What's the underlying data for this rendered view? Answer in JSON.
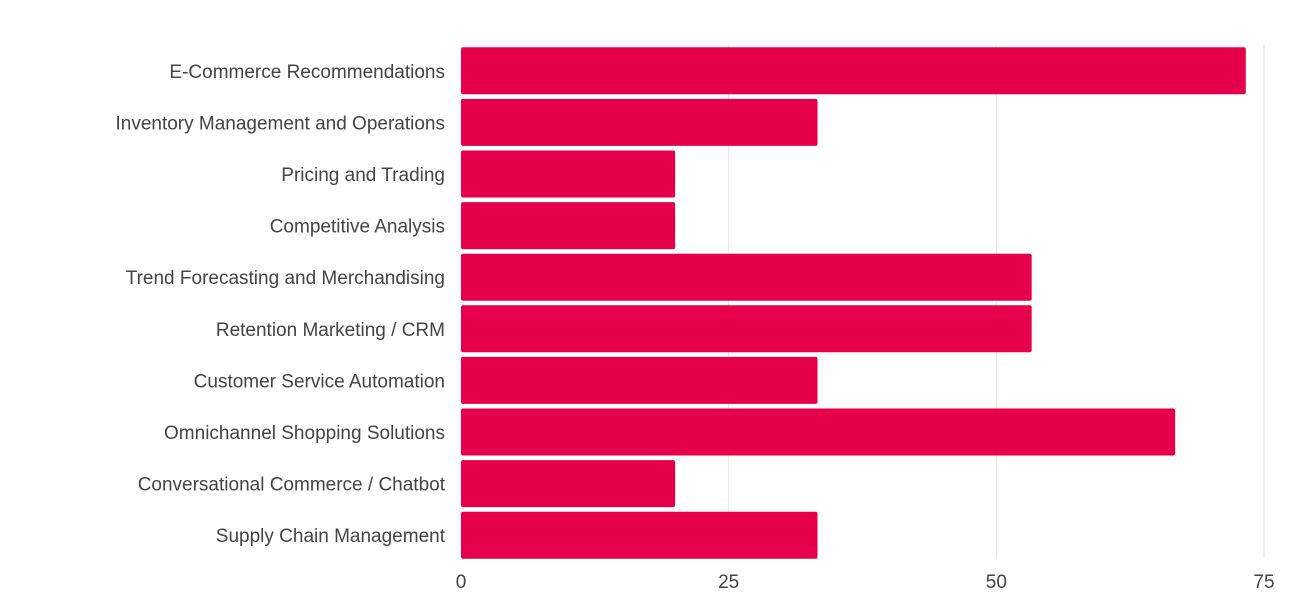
{
  "chart_data": {
    "type": "bar",
    "orientation": "horizontal",
    "categories": [
      "E-Commerce Recommendations",
      "Inventory Management and Operations",
      "Pricing and Trading",
      "Competitive Analysis",
      "Trend Forecasting and Merchandising",
      "Retention Marketing / CRM",
      "Customer Service Automation",
      "Omnichannel Shopping Solutions",
      "Conversational Commerce / Chatbot",
      "Supply Chain Management"
    ],
    "values": [
      73.3,
      33.3,
      20,
      20,
      53.3,
      53.3,
      33.3,
      66.7,
      20,
      33.3
    ],
    "xticks": [
      0,
      25,
      50,
      75
    ],
    "xtick_labels": [
      "0",
      "25",
      "50",
      "75"
    ],
    "xlim": [
      0,
      75
    ],
    "grid": true,
    "bar_color": "#e6004c",
    "title": "",
    "xlabel": "",
    "ylabel": ""
  }
}
